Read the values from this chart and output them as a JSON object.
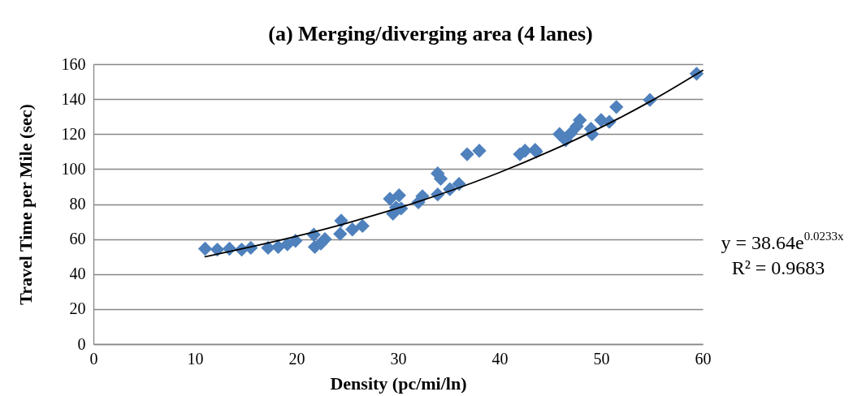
{
  "chart_data": {
    "type": "scatter",
    "title": "(a) Merging/diverging area (4 lanes)",
    "xlabel": "Density (pc/mi/ln)",
    "ylabel": "Travel Time per Mile (sec)",
    "xlim": [
      0,
      60
    ],
    "xticks": [
      0,
      10,
      20,
      30,
      40,
      50,
      60
    ],
    "ylim": [
      0,
      160
    ],
    "yticks": [
      0,
      20,
      40,
      60,
      80,
      100,
      120,
      140,
      160
    ],
    "grid": "y",
    "marker": "diamond",
    "series": [
      {
        "color": "#4f81bd",
        "x": [
          11.0,
          12.2,
          13.4,
          14.6,
          15.5,
          17.2,
          18.2,
          19.1,
          19.9,
          21.7,
          21.8,
          22.4,
          22.8,
          24.4,
          24.3,
          25.5,
          26.5,
          29.2,
          29.5,
          29.8,
          30.1,
          30.3,
          32.0,
          32.4,
          33.9,
          34.2,
          33.9,
          35.1,
          36.0,
          36.8,
          38.0,
          42.0,
          42.5,
          43.5,
          43.6,
          45.9,
          46.5,
          47.0,
          47.6,
          47.9,
          49.0,
          49.1,
          50.0,
          50.8,
          51.5,
          54.8,
          59.4
        ],
        "values": [
          54.5,
          54.0,
          54.5,
          54.0,
          55.0,
          55.0,
          55.5,
          57.0,
          59.0,
          62.5,
          55.5,
          57.5,
          60.0,
          70.5,
          63.0,
          65.5,
          67.5,
          83.0,
          74.5,
          78.0,
          85.0,
          77.5,
          81.0,
          84.5,
          97.5,
          94.5,
          85.5,
          88.5,
          91.5,
          108.5,
          110.5,
          108.5,
          110.5,
          111.0,
          110.0,
          120.0,
          116.5,
          120.5,
          124.5,
          128.0,
          123.0,
          120.0,
          128.0,
          127.0,
          135.5,
          139.5,
          154.5
        ]
      },
      {
        "type": "line",
        "color": "#000000",
        "marker": "none",
        "line_style": "solid",
        "x": [
          11,
          20,
          25,
          30,
          35,
          40,
          45,
          50,
          55,
          60
        ],
        "values": [
          49.9,
          61.6,
          69.2,
          77.7,
          87.3,
          98.1,
          110.3,
          123.9,
          139.2,
          156.4
        ]
      }
    ],
    "annotations": [
      "y = 38.64e$^{0.0233x}$",
      "R² = 0.9683"
    ]
  }
}
